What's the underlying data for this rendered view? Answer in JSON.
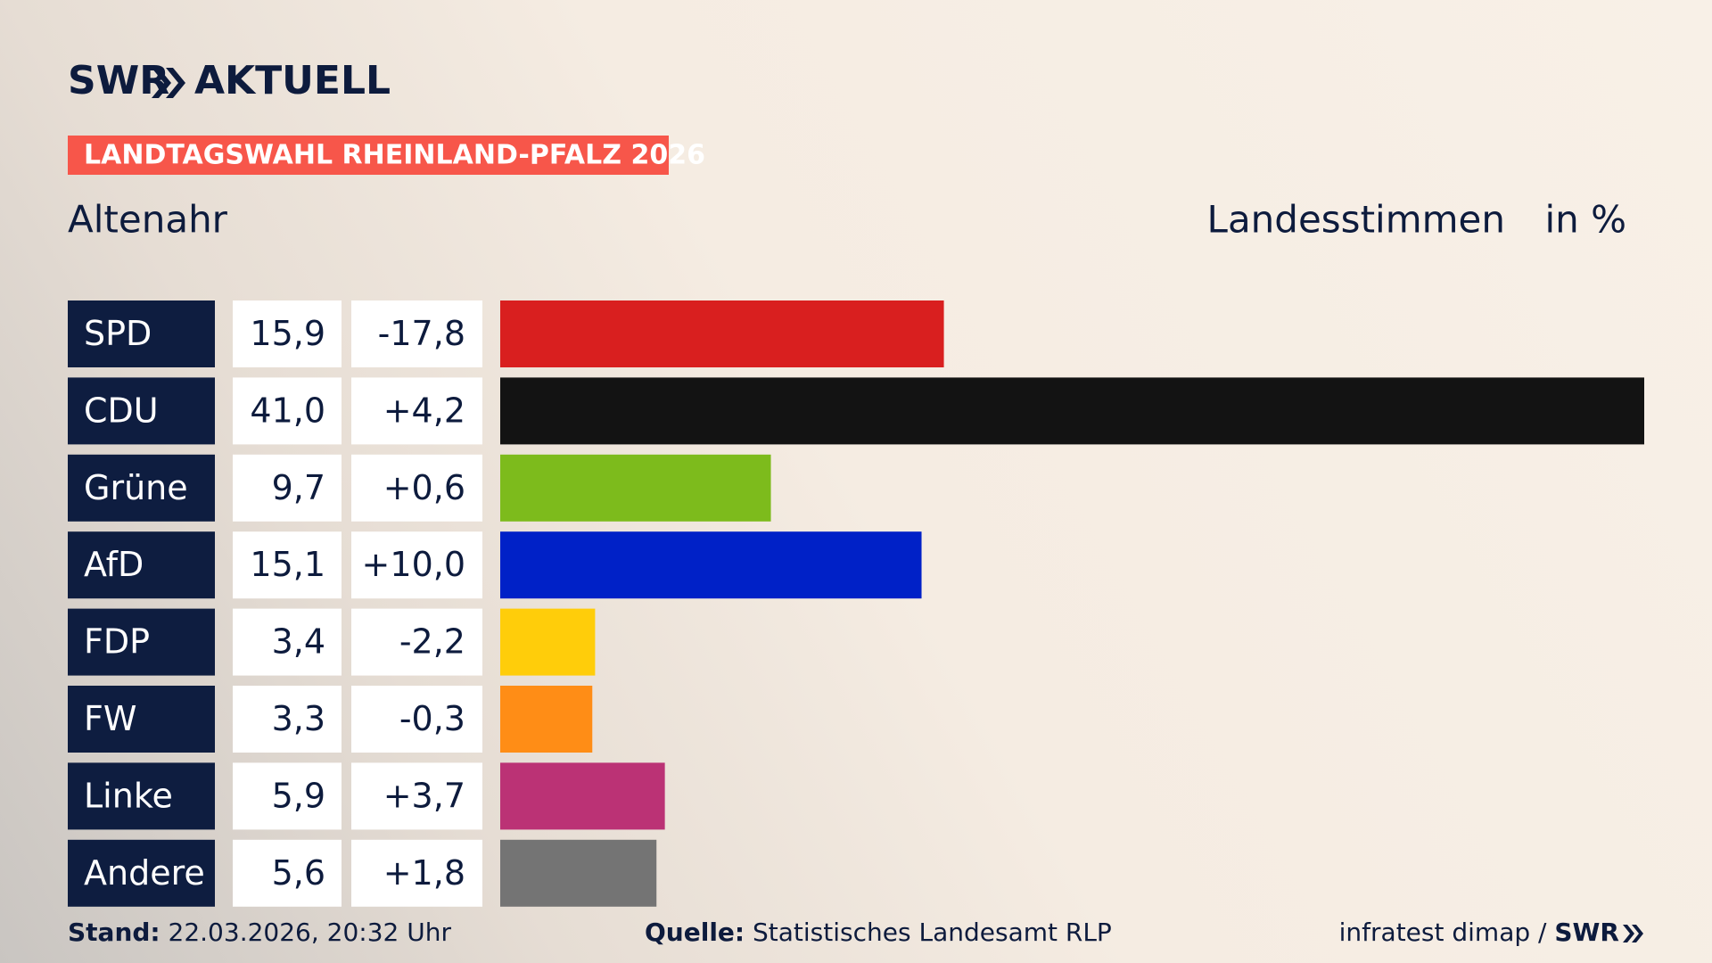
{
  "logo": "SWR",
  "logo_suffix": "AKTUELL",
  "chart_data": {
    "type": "bar",
    "orientation": "horizontal",
    "banner": "LANDTAGSWAHL RHEINLAND-PFALZ 2026",
    "title": "Altenahr",
    "value_caption": "Landesstimmen",
    "unit_caption": "in %",
    "categories": [
      "SPD",
      "CDU",
      "Grüne",
      "AfD",
      "FDP",
      "FW",
      "Linke",
      "Andere"
    ],
    "values": [
      15.9,
      41.0,
      9.7,
      15.1,
      3.4,
      3.3,
      5.9,
      5.6
    ],
    "value_labels": [
      "15,9",
      "41,0",
      "9,7",
      "15,1",
      "3,4",
      "3,3",
      "5,9",
      "5,6"
    ],
    "changes": [
      -17.8,
      4.2,
      0.6,
      10.0,
      -2.2,
      -0.3,
      3.7,
      1.8
    ],
    "change_labels": [
      "-17,8",
      "+4,2",
      "+0,6",
      "+10,0",
      "-2,2",
      "-0,3",
      "+3,7",
      "+1,8"
    ],
    "colors": [
      "#d91f1f",
      "#131313",
      "#7dbb1c",
      "#0021c7",
      "#ffcd0a",
      "#ff8d16",
      "#bb3275",
      "#747474"
    ]
  },
  "footer": {
    "stand_label": "Stand:",
    "stand": "22.03.2026, 20:32 Uhr",
    "source_label": "Quelle:",
    "source": "Statistisches Landesamt RLP",
    "credit": "infratest dimap /",
    "credit_logo": "SWR"
  }
}
